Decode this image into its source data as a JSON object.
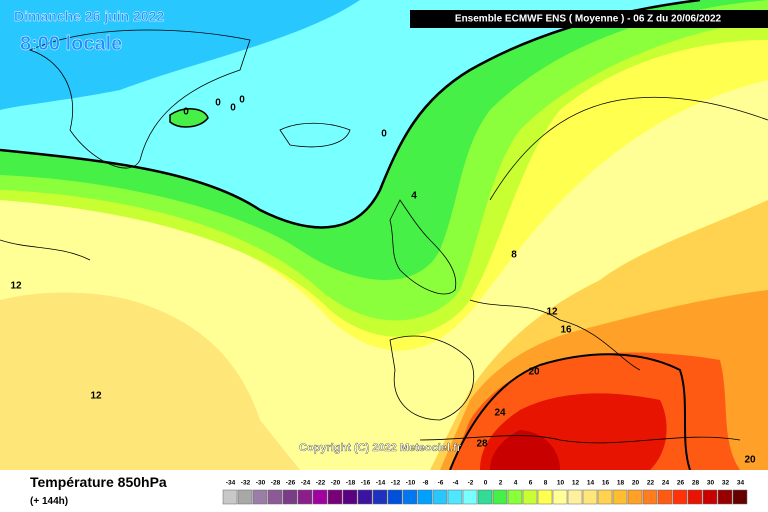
{
  "header": {
    "date": "Dimanche 26 juin 2022",
    "time": "8:00 locale",
    "model": "Ensemble ECMWF ENS  ( Moyenne )  -  06 Z du 20/06/2022"
  },
  "copyright": "Copyright (C) 2022 Meteociel.fr",
  "contour_labels": [
    "0",
    "0",
    "0",
    "0",
    "0",
    "4",
    "8",
    "12",
    "12",
    "12",
    "16",
    "20",
    "24",
    "28",
    "20"
  ],
  "legend": {
    "title": "Température 850hPa",
    "subtitle": "(+ 144h)",
    "values": [
      -34,
      -32,
      -30,
      -28,
      -26,
      -24,
      -22,
      -20,
      -18,
      -16,
      -14,
      -12,
      -10,
      -8,
      -6,
      -4,
      -2,
      0,
      2,
      4,
      6,
      8,
      10,
      12,
      14,
      16,
      18,
      20,
      22,
      24,
      26,
      28,
      30,
      32,
      34
    ],
    "colors": [
      "#c8c8c8",
      "#a8a8a8",
      "#9a7ea8",
      "#8c5a96",
      "#7a3c84",
      "#8c1e8c",
      "#a000a0",
      "#780078",
      "#5a0082",
      "#3c14a0",
      "#1e32be",
      "#0050dc",
      "#0078f0",
      "#00a0ff",
      "#28c8ff",
      "#50e6ff",
      "#78ffff",
      "#32dc96",
      "#46f046",
      "#8cff3c",
      "#c8ff32",
      "#ffff50",
      "#ffff96",
      "#fff0a0",
      "#ffe678",
      "#ffd250",
      "#ffbe32",
      "#ffa028",
      "#ff7d1e",
      "#ff5a14",
      "#ff320a",
      "#e61400",
      "#c80000",
      "#960000",
      "#640000"
    ]
  }
}
